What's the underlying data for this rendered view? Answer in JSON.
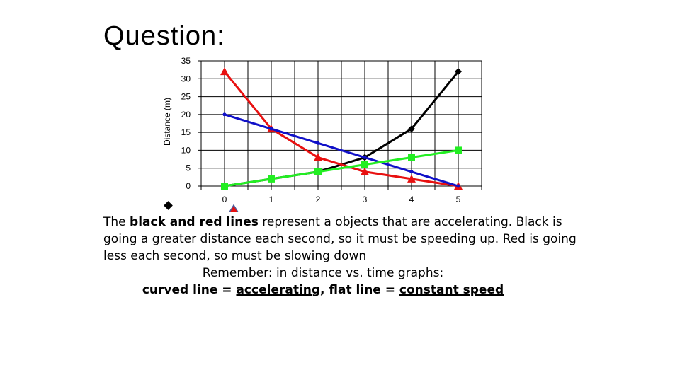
{
  "slide": {
    "title": "Question:"
  },
  "chart_data": {
    "type": "line",
    "title": "",
    "xlabel": "",
    "ylabel": "Distance (m)",
    "x": [
      0,
      1,
      2,
      3,
      4,
      5
    ],
    "xlim": [
      0,
      5
    ],
    "ylim": [
      0,
      35
    ],
    "yticks": [
      0,
      5,
      10,
      15,
      20,
      25,
      30,
      35
    ],
    "grid": true,
    "series": [
      {
        "color": "#000000",
        "marker": "diamond",
        "values": [
          0,
          2,
          4,
          8,
          16,
          32
        ]
      },
      {
        "color": "#e81010",
        "marker": "triangle",
        "values": [
          32,
          16,
          8,
          4,
          2,
          0
        ]
      },
      {
        "color": "#1010c8",
        "marker": "dot",
        "values": [
          20,
          16,
          12,
          8,
          4,
          0
        ]
      },
      {
        "color": "#22ee22",
        "marker": "square",
        "values": [
          0,
          2,
          4,
          6,
          8,
          10
        ]
      }
    ]
  },
  "explanation": {
    "p1_a": "The ",
    "p1_bold": "black and red lines",
    "p1_b": " represent a objects that are accelerating. Black is going a greater distance each second, so it must be speeding up. Red is going less each second, so must be slowing down",
    "remember": "Remember: in distance vs. time graphs:",
    "rule_a": "curved line = ",
    "rule_accel": "accelerating",
    "rule_b": ", flat line = ",
    "rule_const": "constant speed"
  },
  "colors": {
    "legend_marker_triangle": "#e81010",
    "legend_marker_triangle_outline": "#4a5a9a"
  }
}
